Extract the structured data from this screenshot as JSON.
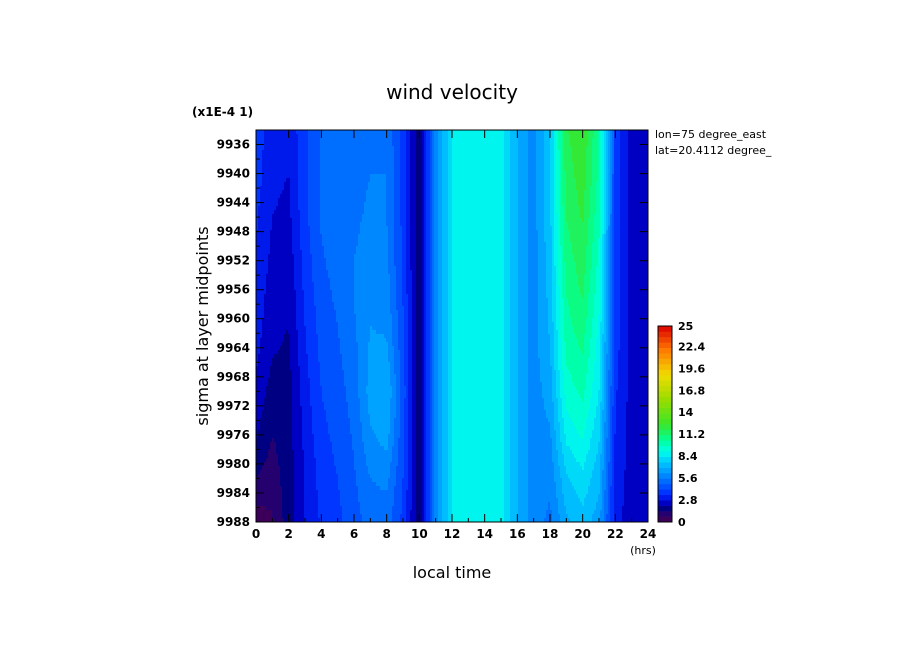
{
  "chart_data": {
    "type": "heatmap",
    "title": "wind velocity",
    "xlabel": "local time",
    "xunit": "(hrs)",
    "ylabel": "sigma at layer midpoints",
    "yscale_note": "(x1E-4 1)",
    "annotations": [
      "lon=75 degree_east",
      "lat=20.4112 degree_"
    ],
    "xlim": [
      0,
      24
    ],
    "ylim": [
      9988,
      9934
    ],
    "xticks": [
      "0",
      "2",
      "4",
      "6",
      "8",
      "10",
      "12",
      "14",
      "16",
      "18",
      "20",
      "22",
      "24"
    ],
    "yticks": [
      "9936",
      "9940",
      "9944",
      "9948",
      "9952",
      "9956",
      "9960",
      "9964",
      "9968",
      "9972",
      "9976",
      "9980",
      "9984",
      "9988"
    ],
    "colorbar": {
      "range": [
        0,
        25
      ],
      "ticks": [
        "0",
        "2.8",
        "5.6",
        "8.4",
        "11.2",
        "14",
        "16.8",
        "19.6",
        "22.4",
        "25"
      ]
    },
    "x": [
      0,
      1,
      2,
      3,
      4,
      5,
      6,
      7,
      8,
      9,
      10,
      11,
      12,
      13,
      14,
      15,
      16,
      17,
      18,
      19,
      20,
      21,
      22,
      23,
      24
    ],
    "y": [
      9934,
      9940,
      9946,
      9952,
      9958,
      9964,
      9970,
      9976,
      9982,
      9988
    ],
    "z": [
      [
        3.8,
        3.2,
        3.0,
        4.0,
        5.0,
        5.4,
        5.2,
        5.6,
        5.4,
        4.0,
        1.5,
        6.0,
        8.4,
        9.0,
        9.0,
        8.8,
        7.0,
        6.0,
        7.5,
        11.8,
        12.5,
        10.5,
        4.0,
        2.5,
        2.6
      ],
      [
        3.8,
        3.0,
        2.8,
        4.0,
        5.0,
        5.4,
        5.2,
        5.6,
        5.6,
        4.0,
        1.5,
        6.0,
        8.4,
        9.0,
        9.0,
        8.8,
        7.0,
        6.0,
        7.5,
        11.5,
        12.3,
        10.3,
        4.0,
        2.5,
        2.6
      ],
      [
        3.6,
        2.8,
        2.6,
        4.0,
        5.0,
        5.4,
        5.4,
        5.8,
        5.6,
        4.0,
        1.5,
        6.0,
        8.4,
        9.0,
        9.0,
        8.8,
        7.0,
        6.0,
        7.5,
        11.2,
        12.0,
        10.0,
        4.0,
        2.5,
        2.6
      ],
      [
        3.4,
        2.6,
        2.4,
        3.8,
        4.8,
        5.2,
        5.6,
        6.0,
        5.8,
        4.0,
        1.5,
        6.0,
        8.4,
        9.0,
        9.0,
        8.8,
        7.0,
        6.0,
        7.4,
        10.8,
        11.6,
        9.6,
        4.0,
        2.5,
        2.6
      ],
      [
        3.2,
        2.4,
        2.2,
        3.6,
        4.6,
        5.0,
        5.6,
        6.2,
        6.0,
        4.2,
        1.5,
        6.0,
        8.4,
        9.0,
        9.0,
        8.8,
        7.0,
        6.0,
        7.2,
        10.4,
        11.2,
        9.2,
        4.0,
        2.5,
        2.6
      ],
      [
        3.0,
        2.2,
        2.0,
        3.4,
        4.4,
        4.8,
        5.4,
        6.4,
        6.4,
        4.4,
        1.5,
        6.0,
        8.4,
        9.0,
        9.0,
        8.8,
        7.0,
        6.0,
        7.0,
        10.0,
        10.6,
        8.8,
        3.8,
        2.5,
        2.6
      ],
      [
        2.6,
        1.8,
        1.8,
        3.2,
        4.2,
        4.6,
        5.2,
        6.6,
        7.0,
        4.6,
        1.5,
        6.0,
        8.4,
        9.0,
        9.0,
        8.8,
        7.0,
        6.0,
        6.6,
        9.4,
        10.0,
        8.4,
        3.6,
        2.5,
        2.6
      ],
      [
        2.2,
        1.4,
        1.8,
        3.0,
        4.0,
        4.4,
        5.0,
        6.2,
        6.6,
        4.4,
        1.5,
        6.0,
        8.4,
        9.0,
        9.0,
        8.8,
        7.0,
        6.0,
        6.2,
        8.6,
        9.2,
        7.8,
        3.4,
        2.5,
        2.6
      ],
      [
        1.4,
        1.0,
        1.8,
        2.8,
        3.8,
        4.2,
        4.8,
        5.6,
        5.8,
        4.2,
        1.5,
        6.0,
        8.4,
        9.0,
        9.0,
        8.8,
        7.0,
        6.0,
        5.8,
        7.6,
        8.2,
        7.2,
        3.2,
        2.5,
        2.6
      ],
      [
        0.3,
        0.6,
        1.8,
        2.8,
        3.6,
        4.0,
        4.6,
        5.2,
        5.2,
        4.0,
        1.5,
        6.0,
        8.4,
        9.0,
        9.0,
        8.8,
        7.0,
        6.0,
        5.4,
        6.8,
        7.4,
        6.6,
        3.0,
        2.5,
        2.6
      ]
    ]
  }
}
